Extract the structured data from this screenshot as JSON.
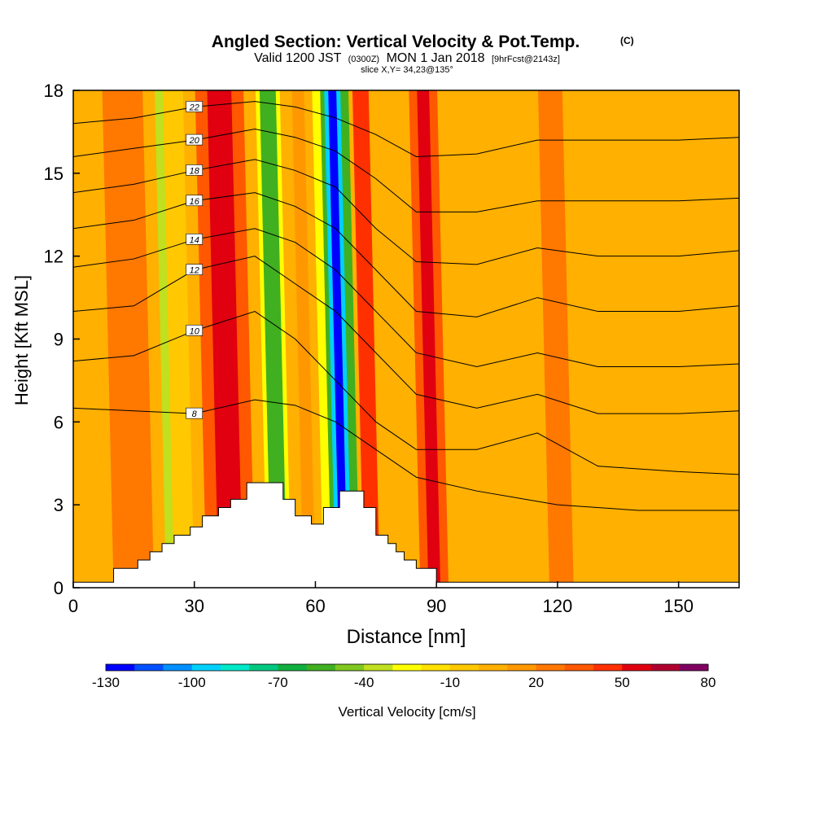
{
  "chart_data": {
    "type": "heatmap",
    "title": "Angled Section: Vertical Velocity & Pot.Temp.",
    "title_unit": "(C)",
    "subtitle_prefix": "Valid 1200 JST",
    "subtitle_utc": "(0300Z)",
    "subtitle_date": "MON 1 Jan 2018",
    "subtitle_fcst": "[9hrFcst@2143z]",
    "subtitle2": "slice X,Y= 34,23@135°",
    "xlabel": "Distance [nm]",
    "ylabel": "Height [Kft MSL]",
    "xlim": [
      0,
      165
    ],
    "ylim": [
      0,
      18
    ],
    "xticks": [
      "0",
      "30",
      "60",
      "90",
      "120",
      "150"
    ],
    "yticks": [
      "0",
      "3",
      "6",
      "9",
      "12",
      "15",
      "18"
    ],
    "colorbar": {
      "label": "Vertical Velocity [cm/s]",
      "tick_labels": [
        "-130",
        "-100",
        "-70",
        "-40",
        "-10",
        "20",
        "50",
        "80"
      ],
      "levels": [
        -130,
        -120,
        -110,
        -100,
        -90,
        -80,
        -70,
        -60,
        -50,
        -40,
        -30,
        -20,
        -10,
        0,
        10,
        20,
        30,
        40,
        50,
        60,
        70,
        80
      ],
      "colors": [
        "#0000ff",
        "#0050ff",
        "#0090ff",
        "#00d0ff",
        "#00e8c8",
        "#00c880",
        "#10b040",
        "#40b020",
        "#80c820",
        "#c0e020",
        "#ffff00",
        "#ffe000",
        "#ffc800",
        "#ffb000",
        "#ff9800",
        "#ff7800",
        "#ff5800",
        "#ff3000",
        "#e00010",
        "#b00030",
        "#800060"
      ]
    },
    "background_field_level": 0,
    "velocity_bands": [
      {
        "x0": 23,
        "x1": 27,
        "level": -40
      },
      {
        "x0": 25,
        "x1": 30,
        "level": -10
      },
      {
        "x0": 33,
        "x1": 45,
        "level": 30
      },
      {
        "x0": 36,
        "x1": 42,
        "level": 50
      },
      {
        "x0": 48,
        "x1": 54,
        "level": -30
      },
      {
        "x0": 49,
        "x1": 53,
        "level": -60
      },
      {
        "x0": 57,
        "x1": 60,
        "level": 10
      },
      {
        "x0": 62,
        "x1": 64,
        "level": -30
      },
      {
        "x0": 64,
        "x1": 71,
        "level": -60
      },
      {
        "x0": 65,
        "x1": 69,
        "level": -100
      },
      {
        "x0": 66,
        "x1": 68,
        "level": -130
      },
      {
        "x0": 72,
        "x1": 76,
        "level": 40
      },
      {
        "x0": 86,
        "x1": 93,
        "level": 30
      },
      {
        "x0": 88,
        "x1": 91,
        "level": 50
      },
      {
        "x0": 118,
        "x1": 124,
        "level": 20
      },
      {
        "x0": 10,
        "x1": 20,
        "level": 20
      }
    ],
    "terrain": [
      [
        0,
        0.2
      ],
      [
        10,
        0.2
      ],
      [
        10,
        0.7
      ],
      [
        16,
        0.7
      ],
      [
        16,
        1.0
      ],
      [
        19,
        1.0
      ],
      [
        19,
        1.3
      ],
      [
        22,
        1.3
      ],
      [
        22,
        1.6
      ],
      [
        25,
        1.6
      ],
      [
        25,
        1.9
      ],
      [
        29,
        1.9
      ],
      [
        29,
        2.2
      ],
      [
        32,
        2.2
      ],
      [
        32,
        2.6
      ],
      [
        36,
        2.6
      ],
      [
        36,
        2.9
      ],
      [
        39,
        2.9
      ],
      [
        39,
        3.2
      ],
      [
        43,
        3.2
      ],
      [
        43,
        3.8
      ],
      [
        52,
        3.8
      ],
      [
        52,
        3.2
      ],
      [
        55,
        3.2
      ],
      [
        55,
        2.6
      ],
      [
        59,
        2.6
      ],
      [
        59,
        2.3
      ],
      [
        62,
        2.3
      ],
      [
        62,
        2.9
      ],
      [
        66,
        2.9
      ],
      [
        66,
        3.5
      ],
      [
        72,
        3.5
      ],
      [
        72,
        2.9
      ],
      [
        75,
        2.9
      ],
      [
        75,
        1.9
      ],
      [
        78,
        1.9
      ],
      [
        78,
        1.6
      ],
      [
        80,
        1.6
      ],
      [
        80,
        1.3
      ],
      [
        82,
        1.3
      ],
      [
        82,
        1.0
      ],
      [
        85,
        1.0
      ],
      [
        85,
        0.7
      ],
      [
        90,
        0.7
      ],
      [
        90,
        0.2
      ],
      [
        165,
        0.2
      ]
    ],
    "isentropes": [
      {
        "value": 8,
        "label": "8",
        "show": true,
        "points": [
          [
            0,
            6.5
          ],
          [
            15,
            6.4
          ],
          [
            30,
            6.3
          ],
          [
            45,
            6.8
          ],
          [
            55,
            6.6
          ],
          [
            65,
            6.0
          ],
          [
            75,
            5.0
          ],
          [
            85,
            4.0
          ],
          [
            100,
            3.5
          ],
          [
            120,
            3.0
          ],
          [
            140,
            2.8
          ],
          [
            165,
            2.8
          ]
        ]
      },
      {
        "value": 10,
        "label": "10",
        "show": true,
        "points": [
          [
            0,
            8.2
          ],
          [
            15,
            8.4
          ],
          [
            30,
            9.3
          ],
          [
            45,
            10.0
          ],
          [
            55,
            9.0
          ],
          [
            65,
            7.5
          ],
          [
            75,
            6.0
          ],
          [
            85,
            5.0
          ],
          [
            100,
            5.0
          ],
          [
            115,
            5.6
          ],
          [
            130,
            4.4
          ],
          [
            150,
            4.2
          ],
          [
            165,
            4.1
          ]
        ]
      },
      {
        "value": 12,
        "label": "12",
        "show": true,
        "points": [
          [
            0,
            10.0
          ],
          [
            15,
            10.2
          ],
          [
            30,
            11.5
          ],
          [
            45,
            12.0
          ],
          [
            55,
            11.0
          ],
          [
            65,
            10.0
          ],
          [
            75,
            8.5
          ],
          [
            85,
            7.0
          ],
          [
            100,
            6.5
          ],
          [
            115,
            7.0
          ],
          [
            130,
            6.3
          ],
          [
            150,
            6.3
          ],
          [
            165,
            6.4
          ]
        ]
      },
      {
        "value": 14,
        "label": "14",
        "show": true,
        "points": [
          [
            0,
            11.6
          ],
          [
            15,
            11.9
          ],
          [
            30,
            12.6
          ],
          [
            45,
            13.0
          ],
          [
            55,
            12.5
          ],
          [
            65,
            11.5
          ],
          [
            75,
            10.0
          ],
          [
            85,
            8.5
          ],
          [
            100,
            8.0
          ],
          [
            115,
            8.5
          ],
          [
            130,
            8.0
          ],
          [
            150,
            8.0
          ],
          [
            165,
            8.1
          ]
        ]
      },
      {
        "value": 16,
        "label": "16",
        "show": true,
        "points": [
          [
            0,
            13.0
          ],
          [
            15,
            13.3
          ],
          [
            30,
            14.0
          ],
          [
            45,
            14.3
          ],
          [
            55,
            13.8
          ],
          [
            65,
            13.0
          ],
          [
            75,
            11.5
          ],
          [
            85,
            10.0
          ],
          [
            100,
            9.8
          ],
          [
            115,
            10.5
          ],
          [
            130,
            10.0
          ],
          [
            150,
            10.0
          ],
          [
            165,
            10.2
          ]
        ]
      },
      {
        "value": 18,
        "label": "18",
        "show": true,
        "points": [
          [
            0,
            14.3
          ],
          [
            15,
            14.6
          ],
          [
            30,
            15.1
          ],
          [
            45,
            15.5
          ],
          [
            55,
            15.1
          ],
          [
            65,
            14.5
          ],
          [
            75,
            13.0
          ],
          [
            85,
            11.8
          ],
          [
            100,
            11.7
          ],
          [
            115,
            12.3
          ],
          [
            130,
            12.0
          ],
          [
            150,
            12.0
          ],
          [
            165,
            12.2
          ]
        ]
      },
      {
        "value": 20,
        "label": "20",
        "show": true,
        "points": [
          [
            0,
            15.6
          ],
          [
            15,
            15.9
          ],
          [
            30,
            16.2
          ],
          [
            45,
            16.6
          ],
          [
            55,
            16.3
          ],
          [
            65,
            15.8
          ],
          [
            75,
            14.8
          ],
          [
            85,
            13.6
          ],
          [
            100,
            13.6
          ],
          [
            115,
            14.0
          ],
          [
            130,
            14.0
          ],
          [
            150,
            14.0
          ],
          [
            165,
            14.1
          ]
        ]
      },
      {
        "value": 22,
        "label": "22",
        "show": true,
        "points": [
          [
            0,
            16.8
          ],
          [
            15,
            17.0
          ],
          [
            30,
            17.4
          ],
          [
            45,
            17.6
          ],
          [
            55,
            17.4
          ],
          [
            65,
            17.0
          ],
          [
            75,
            16.4
          ],
          [
            85,
            15.6
          ],
          [
            100,
            15.7
          ],
          [
            115,
            16.2
          ],
          [
            130,
            16.2
          ],
          [
            150,
            16.2
          ],
          [
            165,
            16.3
          ]
        ]
      }
    ]
  }
}
